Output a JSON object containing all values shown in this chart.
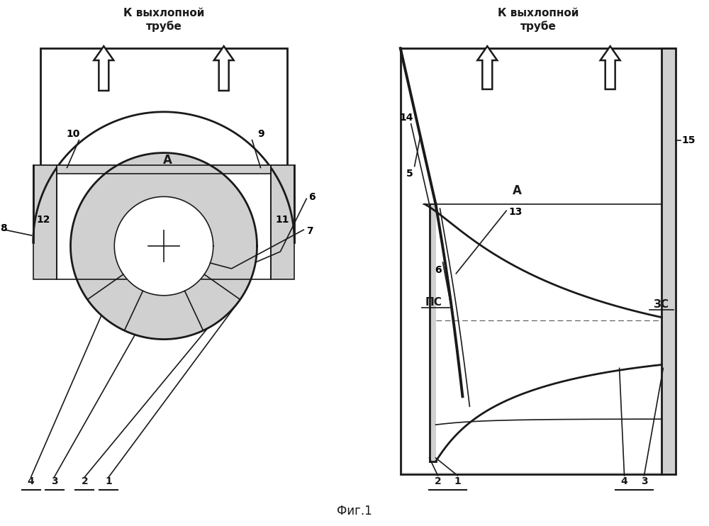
{
  "bg_color": "#ffffff",
  "line_color": "#1a1a1a",
  "fill_color": "#d0d0d0",
  "light_gray": "#e8e8e8",
  "title_text": "Фиг.1",
  "header_left": "К выхлопной\nтрубе",
  "header_right": "К выхлопной\nтрубе",
  "lw_main": 2.0,
  "lw_thin": 1.2,
  "lw_thick": 2.8
}
